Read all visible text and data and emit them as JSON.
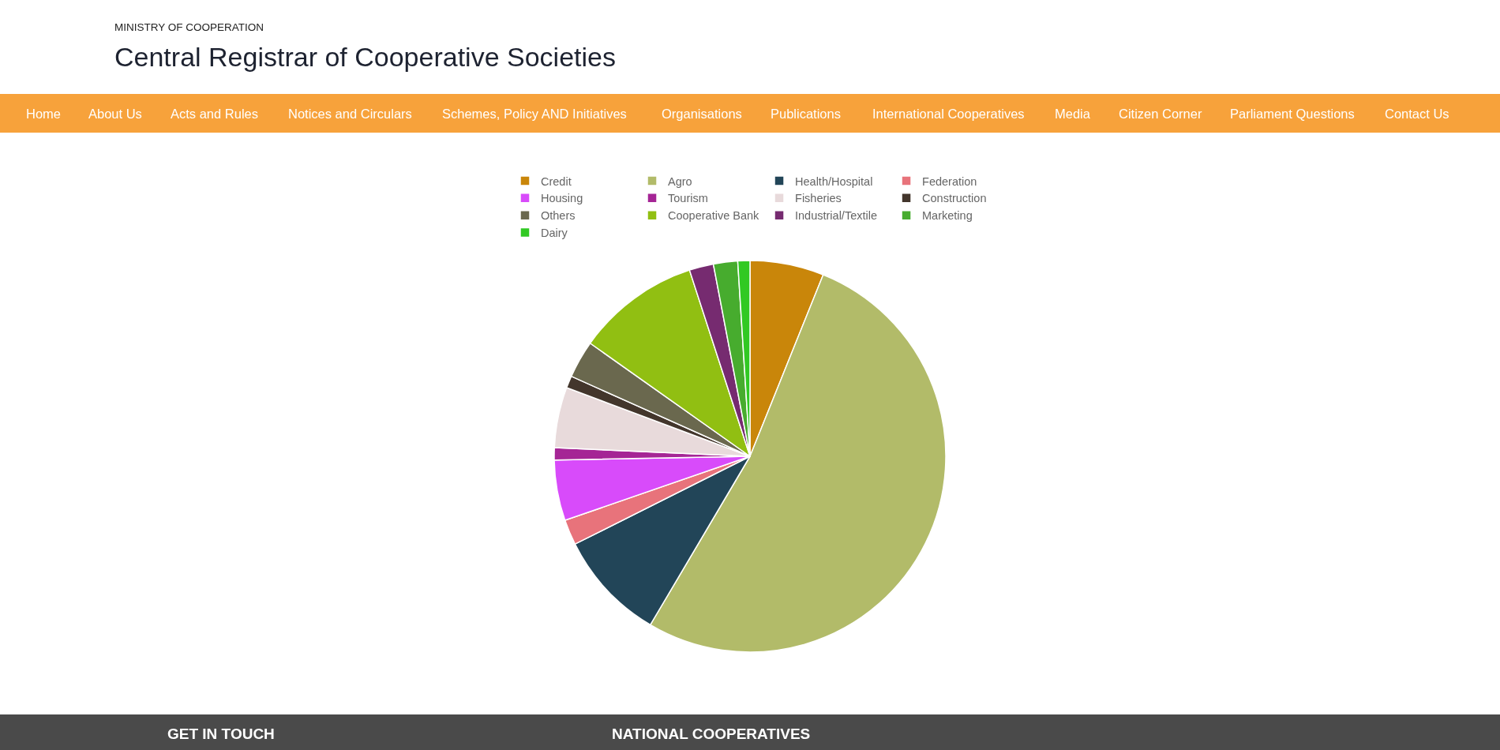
{
  "chart_data": {
    "type": "pie",
    "title": "Central Registrar of Cooperative Societies",
    "subtitle": "MINISTRY OF COOPERATION",
    "categories": [
      "Credit",
      "Agro",
      "Health/Hospital",
      "Federation",
      "Housing",
      "Tourism",
      "Fisheries",
      "Construction",
      "Others",
      "Cooperative Bank",
      "Industrial/Textile",
      "Marketing",
      "Dairy"
    ],
    "values": [
      6.1,
      52.4,
      9.1,
      2.1,
      5.0,
      1.0,
      5.0,
      1.0,
      3.1,
      10.2,
      2.0,
      2.0,
      1.0
    ],
    "colors": [
      "#c9860a",
      "#b2bb69",
      "#224558",
      "#e8737b",
      "#d84bfa",
      "#a52595",
      "#e8dadb",
      "#43362c",
      "#6a684e",
      "#91bf12",
      "#762b70",
      "#47ac2e",
      "#31c923"
    ],
    "legend": "top",
    "annotations": [
      "Home",
      "About Us",
      "Acts and Rules",
      "Notices and Circulars",
      "Schemes, Policy AND Initiatives",
      "Organisations",
      "Publications",
      "International Cooperatives",
      "Media",
      "Citizen Corner",
      "Parliament Questions",
      "Contact Us",
      "GET IN TOUCH",
      "NATIONAL COOPERATIVES"
    ]
  }
}
